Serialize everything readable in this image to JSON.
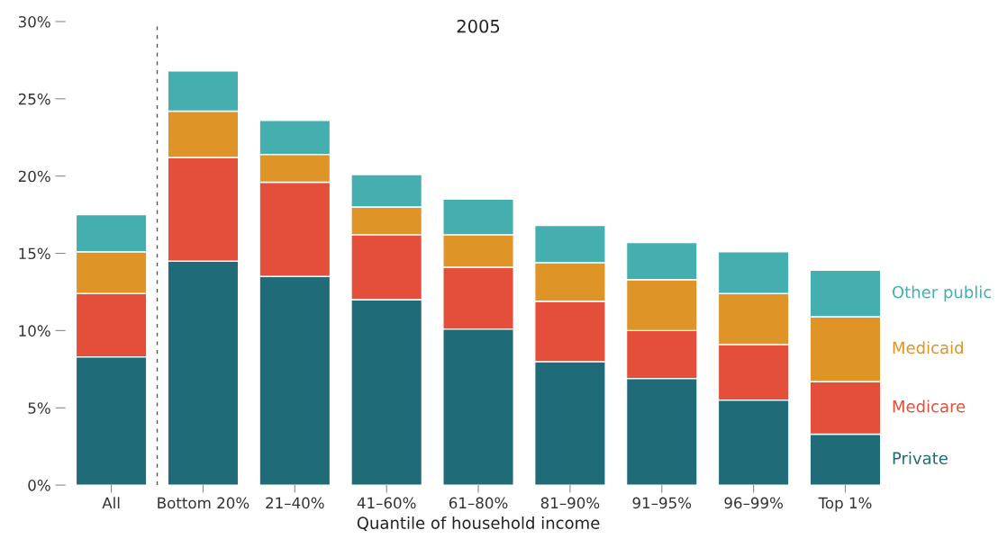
{
  "chart_data": {
    "type": "bar",
    "title": "2005",
    "xlabel": "Quantile of household income",
    "categories": [
      "All",
      "Bottom 20%",
      "21–40%",
      "41–60%",
      "61–80%",
      "81–90%",
      "91–95%",
      "96–99%",
      "Top 1%"
    ],
    "stacked": true,
    "legend": "right",
    "grid": false,
    "series": [
      {
        "name": "Private",
        "color": "#1f6b78",
        "values": [
          8.3,
          14.5,
          13.5,
          12.0,
          10.1,
          8.0,
          6.9,
          5.5,
          3.3
        ]
      },
      {
        "name": "Medicare",
        "color": "#e34f3a",
        "values": [
          4.1,
          6.7,
          6.1,
          4.2,
          4.0,
          3.9,
          3.1,
          3.6,
          3.4
        ]
      },
      {
        "name": "Medicaid",
        "color": "#df9427",
        "values": [
          2.7,
          3.0,
          1.8,
          1.8,
          2.1,
          2.5,
          3.3,
          3.3,
          4.2
        ]
      },
      {
        "name": "Other public",
        "color": "#45afaf",
        "values": [
          2.4,
          2.6,
          2.2,
          2.1,
          2.3,
          2.4,
          2.4,
          2.7,
          3.0
        ]
      }
    ],
    "ylim": [
      0,
      30
    ],
    "yticks": [
      {
        "value": 0,
        "label": "0%"
      },
      {
        "value": 5,
        "label": "5%"
      },
      {
        "value": 10,
        "label": "10%"
      },
      {
        "value": 15,
        "label": "15%"
      },
      {
        "value": 20,
        "label": "20%"
      },
      {
        "value": 25,
        "label": "25%"
      },
      {
        "value": 30,
        "label": "30%"
      }
    ]
  }
}
